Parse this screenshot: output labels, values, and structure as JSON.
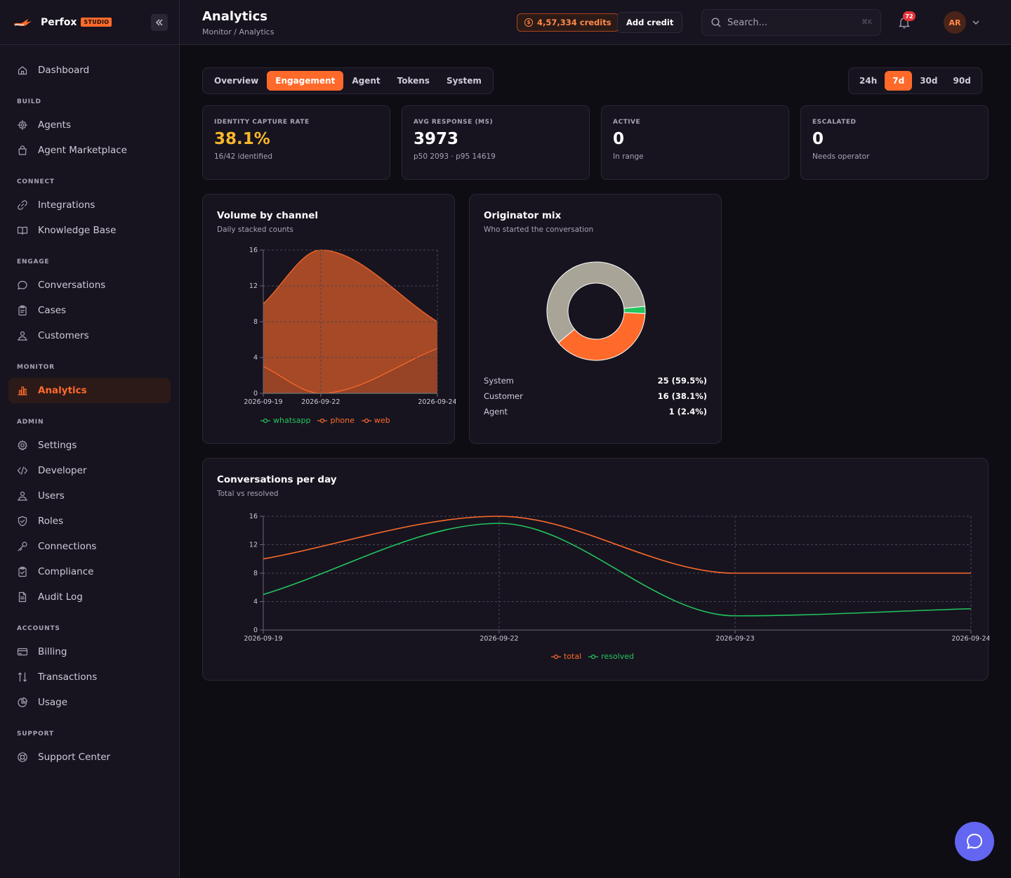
{
  "brand": {
    "name": "Perfox",
    "badge": "STUDIO"
  },
  "sidebar": {
    "top": [
      {
        "label": "Dashboard",
        "icon": "home-icon"
      }
    ],
    "sections": [
      {
        "title": "BUILD",
        "items": [
          {
            "label": "Agents",
            "icon": "cog-icon"
          },
          {
            "label": "Agent Marketplace",
            "icon": "bag-icon"
          }
        ]
      },
      {
        "title": "CONNECT",
        "items": [
          {
            "label": "Integrations",
            "icon": "link-icon"
          },
          {
            "label": "Knowledge Base",
            "icon": "book-icon"
          }
        ]
      },
      {
        "title": "ENGAGE",
        "items": [
          {
            "label": "Conversations",
            "icon": "chat-icon"
          },
          {
            "label": "Cases",
            "icon": "clipboard-icon"
          },
          {
            "label": "Customers",
            "icon": "users-icon"
          }
        ]
      },
      {
        "title": "MONITOR",
        "items": [
          {
            "label": "Analytics",
            "icon": "bar-chart-icon",
            "active": true
          }
        ]
      },
      {
        "title": "ADMIN",
        "items": [
          {
            "label": "Settings",
            "icon": "gear-icon"
          },
          {
            "label": "Developer",
            "icon": "code-icon"
          },
          {
            "label": "Users",
            "icon": "user-icon"
          },
          {
            "label": "Roles",
            "icon": "shield-icon"
          },
          {
            "label": "Connections",
            "icon": "key-icon"
          },
          {
            "label": "Compliance",
            "icon": "clipboard-check-icon"
          },
          {
            "label": "Audit Log",
            "icon": "file-icon"
          }
        ]
      },
      {
        "title": "ACCOUNTS",
        "items": [
          {
            "label": "Billing",
            "icon": "card-icon"
          },
          {
            "label": "Transactions",
            "icon": "arrows-icon"
          },
          {
            "label": "Usage",
            "icon": "pie-icon"
          }
        ]
      },
      {
        "title": "SUPPORT",
        "items": [
          {
            "label": "Support Center",
            "icon": "lifebuoy-icon"
          }
        ]
      }
    ]
  },
  "header": {
    "title": "Analytics",
    "breadcrumb": "Monitor / Analytics",
    "credits": "4,57,334 credits",
    "add_credit": "Add credit",
    "search_placeholder": "Search...",
    "shortcut": "⌘K",
    "notifications": "72",
    "avatar_initials": "AR"
  },
  "tabs": [
    "Overview",
    "Engagement",
    "Agent",
    "Tokens",
    "System"
  ],
  "active_tab": "Engagement",
  "ranges": [
    "24h",
    "7d",
    "30d",
    "90d"
  ],
  "active_range": "7d",
  "stats": [
    {
      "label": "IDENTITY CAPTURE RATE",
      "value": "38.1%",
      "sub": "16/42 identified"
    },
    {
      "label": "AVG RESPONSE (MS)",
      "value": "3973",
      "sub": "p50 2093 · p95 14619"
    },
    {
      "label": "ACTIVE",
      "value": "0",
      "sub": "In range"
    },
    {
      "label": "ESCALATED",
      "value": "0",
      "sub": "Needs operator"
    }
  ],
  "colors": {
    "accent": "#ff6a2b",
    "green": "#22c55e",
    "gray": "#a8a497",
    "amber": "#f9b82a"
  },
  "chart_data": [
    {
      "type": "area",
      "title": "Volume by channel",
      "subtitle": "Daily stacked counts",
      "x": [
        "2026-09-19",
        "2026-09-22",
        "2026-09-24"
      ],
      "ylim": [
        0,
        16
      ],
      "yticks": [
        0,
        4,
        8,
        12,
        16
      ],
      "stacked": true,
      "series": [
        {
          "name": "whatsapp",
          "values": [
            0,
            0,
            0
          ],
          "color": "#22c55e"
        },
        {
          "name": "phone",
          "values": [
            3,
            0,
            5
          ],
          "color": "#ff6a2b"
        },
        {
          "name": "web",
          "values": [
            7,
            16,
            3
          ],
          "color": "#ff6a2b"
        }
      ],
      "stack_totals": [
        10,
        16,
        8
      ],
      "grid": true
    },
    {
      "type": "pie",
      "title": "Originator mix",
      "subtitle": "Who started the conversation",
      "slices": [
        {
          "name": "System",
          "value": 25,
          "label": "25 (59.5%)",
          "color": "#a8a497"
        },
        {
          "name": "Customer",
          "value": 16,
          "label": "16 (38.1%)",
          "color": "#ff6a2b"
        },
        {
          "name": "Agent",
          "value": 1,
          "label": "1 (2.4%)",
          "color": "#22c55e"
        }
      ]
    },
    {
      "type": "line",
      "title": "Conversations per day",
      "subtitle": "Total vs resolved",
      "x": [
        "2026-09-19",
        "2026-09-22",
        "2026-09-23",
        "2026-09-24"
      ],
      "ylim": [
        0,
        16
      ],
      "yticks": [
        0,
        4,
        8,
        12,
        16
      ],
      "series": [
        {
          "name": "total",
          "values": [
            10,
            16,
            8,
            8
          ],
          "color": "#ff6a2b"
        },
        {
          "name": "resolved",
          "values": [
            5,
            15,
            2,
            3
          ],
          "color": "#22c55e"
        }
      ],
      "grid": true
    }
  ]
}
